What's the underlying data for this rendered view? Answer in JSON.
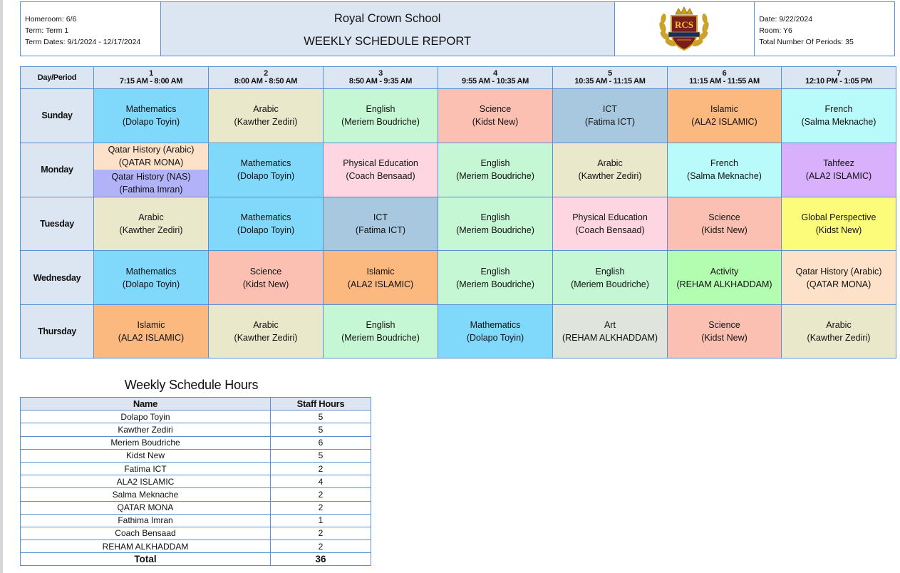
{
  "header": {
    "homeroom": "Homeroom: 6/6",
    "term": "Term: Term 1",
    "term_dates": "Term Dates: 9/1/2024 - 12/17/2024",
    "school_name": "Royal Crown School",
    "report_title": "WEEKLY SCHEDULE REPORT",
    "logo_text": "RCS",
    "date": "Date: 9/22/2024",
    "room": "Room: Y6",
    "total_periods": "Total Number Of Periods: 35"
  },
  "schedule": {
    "corner_label": "Day/Period",
    "periods": [
      {
        "num": "1",
        "time": "7:15 AM - 8:00 AM"
      },
      {
        "num": "2",
        "time": "8:00 AM - 8:50 AM"
      },
      {
        "num": "3",
        "time": "8:50 AM - 9:35 AM"
      },
      {
        "num": "4",
        "time": "9:55 AM - 10:35 AM"
      },
      {
        "num": "5",
        "time": "10:35 AM - 11:15 AM"
      },
      {
        "num": "6",
        "time": "11:15 AM - 11:55 AM"
      },
      {
        "num": "7",
        "time": "12:10 PM - 1:05 PM"
      }
    ],
    "days": [
      {
        "name": "Sunday",
        "cells": [
          {
            "subject": "Mathematics",
            "teacher": "(Dolapo Toyin)",
            "color": "#80d8fa"
          },
          {
            "subject": "Arabic",
            "teacher": "(Kawther Zediri)",
            "color": "#eae8cb"
          },
          {
            "subject": "English",
            "teacher": "(Meriem Boudriche)",
            "color": "#c5f7d4"
          },
          {
            "subject": "Science",
            "teacher": "(Kidst New)",
            "color": "#fcc0b2"
          },
          {
            "subject": "ICT",
            "teacher": "(Fatima ICT)",
            "color": "#a8c8df"
          },
          {
            "subject": "Islamic",
            "teacher": "(ALA2 ISLAMIC)",
            "color": "#fbb97f"
          },
          {
            "subject": "French",
            "teacher": "(Salma Meknache)",
            "color": "#b9fbfa"
          }
        ]
      },
      {
        "name": "Monday",
        "cells": [
          {
            "split": true,
            "top": {
              "text": "Qatar History (Arabic)",
              "teacher": "(QATAR MONA)",
              "color": "#fde2c9"
            },
            "bottom": {
              "text": "Qatar History (NAS)",
              "teacher": "(Fathima Imran)",
              "color": "#b2b2f9"
            }
          },
          {
            "subject": "Mathematics",
            "teacher": "(Dolapo Toyin)",
            "color": "#80d8fa"
          },
          {
            "subject": "Physical Education",
            "teacher": "(Coach Bensaad)",
            "color": "#fed6e2"
          },
          {
            "subject": "English",
            "teacher": "(Meriem Boudriche)",
            "color": "#c5f7d4"
          },
          {
            "subject": "Arabic",
            "teacher": "(Kawther Zediri)",
            "color": "#eae8cb"
          },
          {
            "subject": "French",
            "teacher": "(Salma Meknache)",
            "color": "#b9fbfa"
          },
          {
            "subject": "Tahfeez",
            "teacher": "(ALA2 ISLAMIC)",
            "color": "#d9b0fb"
          }
        ]
      },
      {
        "name": "Tuesday",
        "cells": [
          {
            "subject": "Arabic",
            "teacher": "(Kawther Zediri)",
            "color": "#eae8cb"
          },
          {
            "subject": "Mathematics",
            "teacher": "(Dolapo Toyin)",
            "color": "#80d8fa"
          },
          {
            "subject": "ICT",
            "teacher": "(Fatima ICT)",
            "color": "#a8c8df"
          },
          {
            "subject": "English",
            "teacher": "(Meriem Boudriche)",
            "color": "#c5f7d4"
          },
          {
            "subject": "Physical Education",
            "teacher": "(Coach Bensaad)",
            "color": "#fed6e2"
          },
          {
            "subject": "Science",
            "teacher": "(Kidst New)",
            "color": "#fcc0b2"
          },
          {
            "subject": "Global Perspective",
            "teacher": "(Kidst New)",
            "color": "#fdfc7a"
          }
        ]
      },
      {
        "name": "Wednesday",
        "cells": [
          {
            "subject": "Mathematics",
            "teacher": "(Dolapo Toyin)",
            "color": "#80d8fa"
          },
          {
            "subject": "Science",
            "teacher": "(Kidst New)",
            "color": "#fcc0b2"
          },
          {
            "subject": "Islamic",
            "teacher": "(ALA2 ISLAMIC)",
            "color": "#fbb97f"
          },
          {
            "subject": "English",
            "teacher": "(Meriem Boudriche)",
            "color": "#c5f7d4"
          },
          {
            "subject": "English",
            "teacher": "(Meriem Boudriche)",
            "color": "#c5f7d4"
          },
          {
            "subject": "Activity",
            "teacher": "(REHAM ALKHADDAM)",
            "color": "#b2fdb0"
          },
          {
            "subject": "Qatar History (Arabic)",
            "teacher": "(QATAR MONA)",
            "color": "#fde2c9"
          }
        ]
      },
      {
        "name": "Thursday",
        "cells": [
          {
            "subject": "Islamic",
            "teacher": "(ALA2 ISLAMIC)",
            "color": "#fbb97f"
          },
          {
            "subject": "Arabic",
            "teacher": "(Kawther Zediri)",
            "color": "#eae8cb"
          },
          {
            "subject": "English",
            "teacher": "(Meriem Boudriche)",
            "color": "#c5f7d4"
          },
          {
            "subject": "Mathematics",
            "teacher": "(Dolapo Toyin)",
            "color": "#80d8fa"
          },
          {
            "subject": "Art",
            "teacher": "(REHAM ALKHADDAM)",
            "color": "#dfe5dc"
          },
          {
            "subject": "Science",
            "teacher": "(Kidst New)",
            "color": "#fcc0b2"
          },
          {
            "subject": "Arabic",
            "teacher": "(Kawther Zediri)",
            "color": "#eae8cb"
          }
        ]
      }
    ]
  },
  "hours": {
    "title": "Weekly Schedule Hours",
    "col_name": "Name",
    "col_hours": "Staff Hours",
    "rows": [
      {
        "name": "Dolapo Toyin",
        "hours": "5"
      },
      {
        "name": "Kawther Zediri",
        "hours": "5"
      },
      {
        "name": "Meriem Boudriche",
        "hours": "6"
      },
      {
        "name": "Kidst New",
        "hours": "5"
      },
      {
        "name": "Fatima ICT",
        "hours": "2"
      },
      {
        "name": "ALA2 ISLAMIC",
        "hours": "4"
      },
      {
        "name": "Salma Meknache",
        "hours": "2"
      },
      {
        "name": "QATAR MONA",
        "hours": "2"
      },
      {
        "name": "Fathima Imran",
        "hours": "1"
      },
      {
        "name": "Coach Bensaad",
        "hours": "2"
      },
      {
        "name": "REHAM ALKHADDAM",
        "hours": "2"
      }
    ],
    "total_label": "Total",
    "total_value": "36"
  }
}
